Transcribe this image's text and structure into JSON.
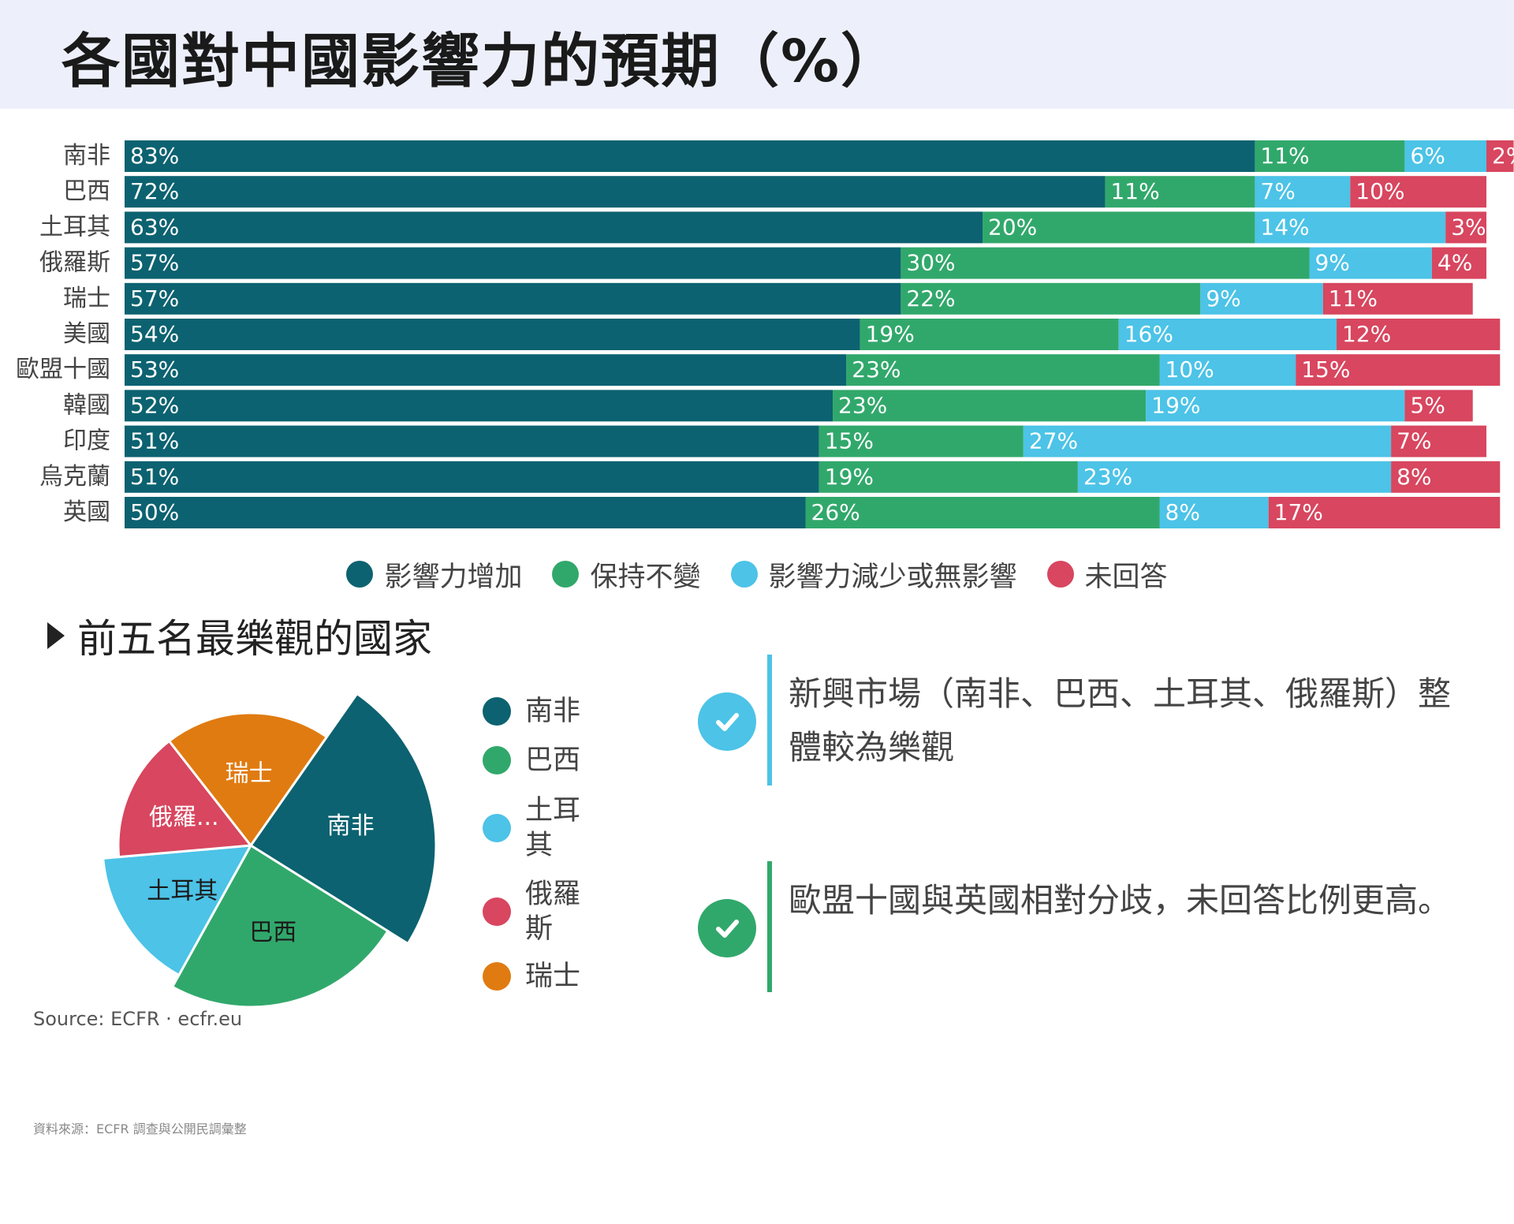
{
  "title": "各國對中國影響力的預期（%）",
  "colors": {
    "increase": "#0c6270",
    "same": "#31a86b",
    "decrease": "#4cc3e7",
    "no_answer": "#d8465f",
    "swiss": "#e07b11",
    "check_blue": "#4cc3e7",
    "check_green": "#31a86b",
    "header_bg": "#edf0fb"
  },
  "legend": [
    {
      "label": "影響力增加",
      "color": "#0c6270"
    },
    {
      "label": "保持不變",
      "color": "#31a86b"
    },
    {
      "label": "影響力減少或無影響",
      "color": "#4cc3e7"
    },
    {
      "label": "未回答",
      "color": "#d8465f"
    }
  ],
  "subtitle": "前五名最樂觀的國家",
  "pie_legend": [
    {
      "label": "南非",
      "color": "#0c6270"
    },
    {
      "label": "巴西",
      "color": "#31a86b"
    },
    {
      "label": "土耳其",
      "color": "#4cc3e7"
    },
    {
      "label": "俄羅斯",
      "color": "#d8465f"
    },
    {
      "label": "瑞士",
      "color": "#e07b11"
    }
  ],
  "callouts": [
    {
      "text": "新興市場（南非、巴西、土耳其、俄羅斯）整體較為樂觀",
      "icon": "check-icon",
      "color": "#4cc3e7"
    },
    {
      "text": "歐盟十國與英國相對分歧，未回答比例更高。",
      "icon": "check-icon",
      "color": "#31a86b"
    }
  ],
  "source": "Source: ECFR · ecfr.eu",
  "footnote": "資料來源：ECFR 調查與公開民調彙整",
  "chart_data": [
    {
      "type": "bar",
      "orientation": "horizontal",
      "stacked": true,
      "categories": [
        "南非",
        "巴西",
        "土耳其",
        "俄羅斯",
        "瑞士",
        "美國",
        "歐盟十國",
        "韓國",
        "印度",
        "烏克蘭",
        "英國"
      ],
      "series": [
        {
          "name": "影響力增加",
          "values": [
            83,
            72,
            63,
            57,
            57,
            54,
            53,
            52,
            51,
            51,
            50
          ]
        },
        {
          "name": "保持不變",
          "values": [
            11,
            11,
            20,
            30,
            22,
            19,
            23,
            23,
            15,
            19,
            26
          ]
        },
        {
          "name": "影響力減少或無影響",
          "values": [
            6,
            7,
            14,
            9,
            9,
            16,
            10,
            19,
            27,
            23,
            8
          ]
        },
        {
          "name": "未回答",
          "values": [
            2,
            10,
            3,
            4,
            11,
            12,
            15,
            5,
            7,
            8,
            17
          ]
        }
      ],
      "legend": "bottom",
      "grid": false
    },
    {
      "type": "pie",
      "categories": [
        "南非",
        "巴西",
        "土耳其",
        "俄羅斯",
        "瑞士"
      ],
      "values": [
        83,
        72,
        63,
        57,
        57
      ],
      "slice_labels": [
        "南非",
        "巴西",
        "土耳其",
        "俄羅...",
        "瑞士"
      ],
      "legend": "right"
    }
  ]
}
